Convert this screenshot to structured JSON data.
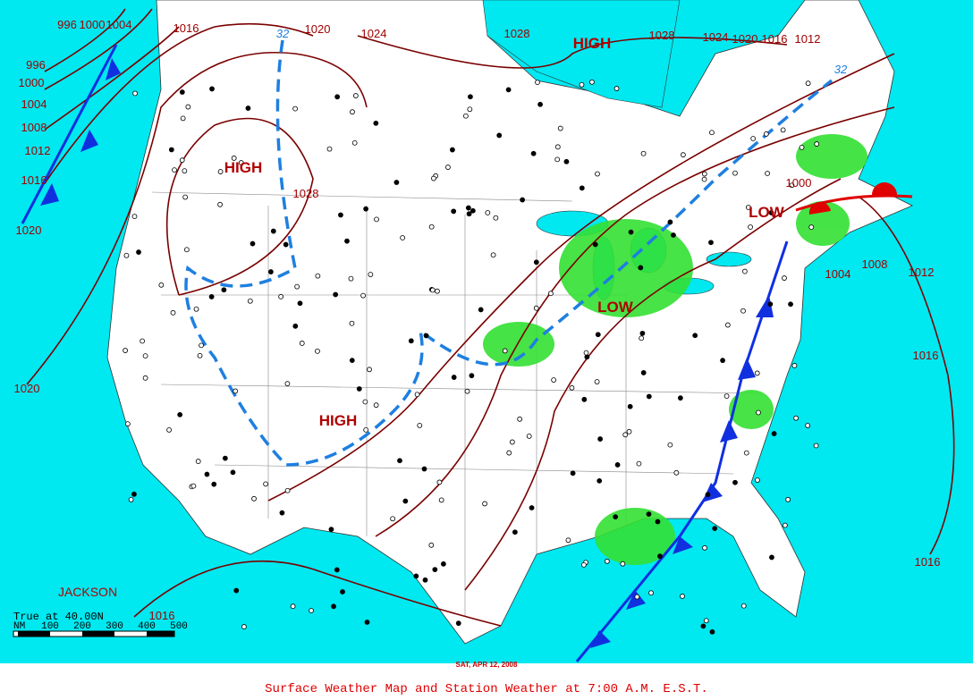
{
  "caption": "Surface Weather Map and Station Weather at 7:00 A.M. E.S.T.",
  "date": "SAT, APR 12, 2008",
  "analyst": "JACKSON",
  "scale": {
    "label": "True at 40.00N",
    "unit": "NM",
    "ticks": [
      100,
      200,
      300,
      400,
      500
    ]
  },
  "pressure_centers": [
    "HIGH",
    "HIGH",
    "HIGH",
    "LOW",
    "LOW"
  ],
  "isobar_labels": [
    996,
    1000,
    1004,
    1016,
    996,
    1000,
    1004,
    1008,
    1012,
    1016,
    1020,
    1020,
    1020,
    1024,
    1028,
    1028,
    1024,
    1020,
    1016,
    1012,
    1028,
    1000,
    1004,
    1008,
    1012,
    1016,
    1016,
    1016
  ],
  "isotherm_labels": [
    32,
    32
  ]
}
